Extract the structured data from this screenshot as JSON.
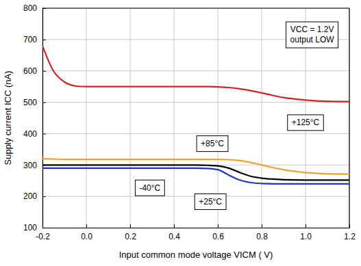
{
  "chart_data": {
    "type": "line",
    "x_label": "Input common mode voltage  VICM  ( V)",
    "y_label": "Supply current  ICC  (nA)",
    "x": [
      -0.2,
      -0.15,
      -0.1,
      -0.05,
      0,
      0.1,
      0.2,
      0.3,
      0.4,
      0.5,
      0.55,
      0.6,
      0.65,
      0.7,
      0.75,
      0.8,
      0.85,
      0.9,
      1.0,
      1.1,
      1.2
    ],
    "series": [
      {
        "name": "+125°C",
        "color": "#d42222",
        "label": {
          "x": 1.0,
          "y": 435
        },
        "values": [
          680,
          600,
          565,
          552,
          550,
          550,
          550,
          550,
          550,
          550,
          550,
          549,
          547,
          543,
          537,
          530,
          522,
          515,
          507,
          503,
          502
        ]
      },
      {
        "name": "+85°C",
        "color": "#f0a032",
        "label": {
          "x": 0.575,
          "y": 368
        },
        "values": [
          320,
          319,
          318,
          318,
          318,
          318,
          318,
          318,
          318,
          318,
          318,
          318,
          317,
          314,
          308,
          300,
          292,
          285,
          276,
          272,
          271
        ]
      },
      {
        "name": "-40°C",
        "color": "#000000",
        "label": {
          "x": 0.29,
          "y": 227
        },
        "values": [
          300,
          300,
          300,
          300,
          300,
          300,
          300,
          300,
          300,
          300,
          299,
          297,
          290,
          276,
          264,
          258,
          255,
          253,
          252,
          252,
          252
        ]
      },
      {
        "name": "+25°C",
        "color": "#2233c4",
        "label": {
          "x": 0.566,
          "y": 183
        },
        "values": [
          290,
          290,
          290,
          290,
          290,
          290,
          290,
          290,
          290,
          290,
          289,
          285,
          268,
          252,
          244,
          241,
          240,
          240,
          240,
          240,
          240
        ]
      }
    ],
    "annotations": [
      {
        "lines": [
          "VCC = 1.2V",
          "output LOW"
        ],
        "x": 1.03,
        "y": 715
      }
    ],
    "xlim": [
      -0.2,
      1.2
    ],
    "xticks": [
      -0.2,
      {
        "value": 0,
        "label": "0.0"
      },
      0.2,
      0.4,
      0.6,
      0.8,
      {
        "value": 1,
        "label": "1.0"
      },
      1.2
    ],
    "ylim": [
      100,
      800
    ],
    "yticks": [
      100,
      200,
      300,
      400,
      500,
      600,
      700,
      800
    ],
    "grid": true
  }
}
